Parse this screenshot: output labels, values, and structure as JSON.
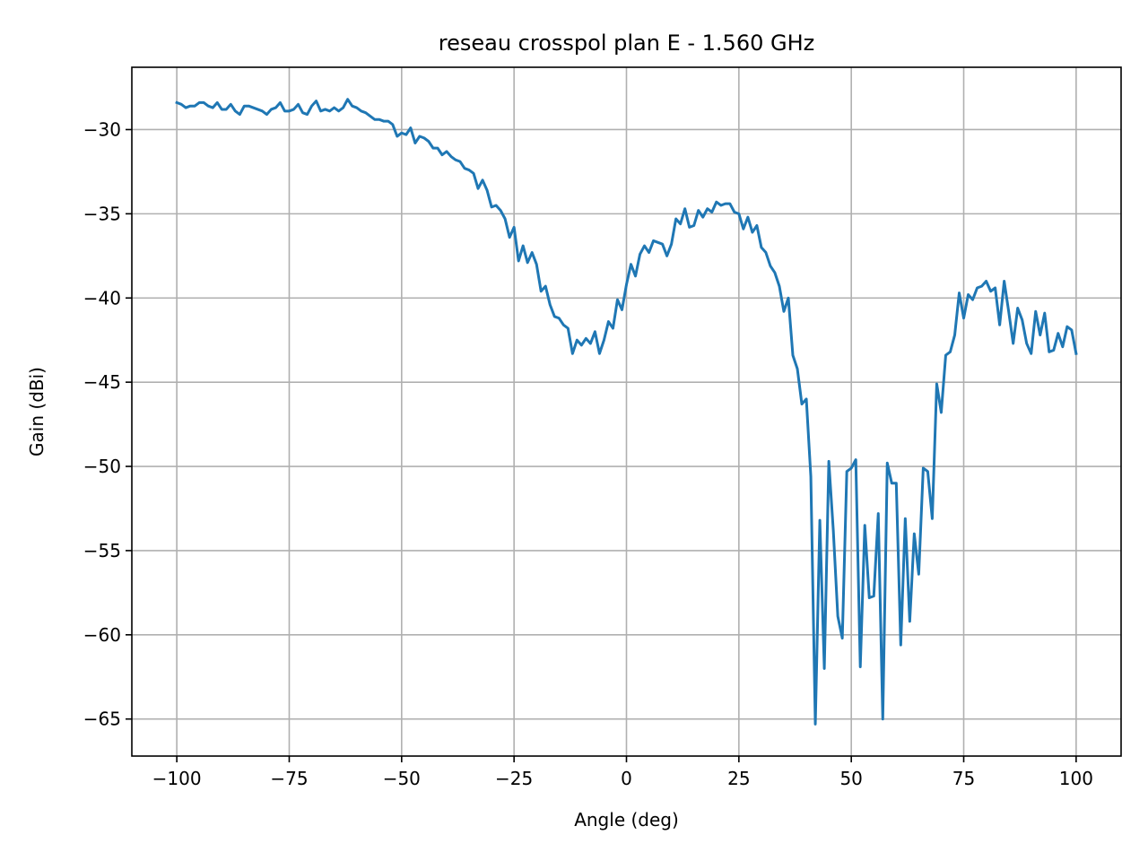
{
  "chart_data": {
    "type": "line",
    "title": "reseau crosspol plan E - 1.560 GHz",
    "xlabel": "Angle (deg)",
    "ylabel": "Gain (dBi)",
    "xlim": [
      -110,
      110
    ],
    "ylim": [
      -67.2,
      -26.3
    ],
    "xticks": [
      -100,
      -75,
      -50,
      -25,
      0,
      25,
      50,
      75,
      100
    ],
    "yticks": [
      -30,
      -35,
      -40,
      -45,
      -50,
      -55,
      -60,
      -65
    ],
    "xtick_labels": [
      "−100",
      "−75",
      "−50",
      "−25",
      "0",
      "25",
      "50",
      "75",
      "100"
    ],
    "ytick_labels": [
      "−30",
      "−35",
      "−40",
      "−45",
      "−50",
      "−55",
      "−60",
      "−65"
    ],
    "grid": true,
    "line_color": "#1f77b4",
    "series": [
      {
        "x": [
          -100,
          -99,
          -98,
          -97,
          -96,
          -95,
          -94,
          -93,
          -92,
          -91,
          -90,
          -89,
          -88,
          -87,
          -86,
          -85,
          -84,
          -83,
          -82,
          -81,
          -80,
          -79,
          -78,
          -77,
          -76,
          -75,
          -74,
          -73,
          -72,
          -71,
          -70,
          -69,
          -68,
          -67,
          -66,
          -65,
          -64,
          -63,
          -62,
          -61,
          -60,
          -59,
          -58,
          -57,
          -56,
          -55,
          -54,
          -53,
          -52,
          -51,
          -50,
          -49,
          -48,
          -47,
          -46,
          -45,
          -44,
          -43,
          -42,
          -41,
          -40,
          -39,
          -38,
          -37,
          -36,
          -35,
          -34,
          -33,
          -32,
          -31,
          -30,
          -29,
          -28,
          -27,
          -26,
          -25,
          -24,
          -23,
          -22,
          -21,
          -20,
          -19,
          -18,
          -17,
          -16,
          -15,
          -14,
          -13,
          -12,
          -11,
          -10,
          -9,
          -8,
          -7,
          -6,
          -5,
          -4,
          -3,
          -2,
          -1,
          0,
          1,
          2,
          3,
          4,
          5,
          6,
          7,
          8,
          9,
          10,
          11,
          12,
          13,
          14,
          15,
          16,
          17,
          18,
          19,
          20,
          21,
          22,
          23,
          24,
          25,
          26,
          27,
          28,
          29,
          30,
          31,
          32,
          33,
          34,
          35,
          36,
          37,
          38,
          39,
          40,
          41,
          42,
          43,
          44,
          45,
          46,
          47,
          48,
          49,
          50,
          51,
          52,
          53,
          54,
          55,
          56,
          57,
          58,
          59,
          60,
          61,
          62,
          63,
          64,
          65,
          66,
          67,
          68,
          69,
          70,
          71,
          72,
          73,
          74,
          75,
          76,
          77,
          78,
          79,
          80,
          81,
          82,
          83,
          84,
          85,
          86,
          87,
          88,
          89,
          90,
          91,
          92,
          93,
          94,
          95,
          96,
          97,
          98,
          99,
          100
        ],
        "y": [
          -28.4,
          -28.5,
          -28.7,
          -28.6,
          -28.6,
          -28.4,
          -28.4,
          -28.6,
          -28.7,
          -28.4,
          -28.8,
          -28.8,
          -28.5,
          -28.9,
          -29.1,
          -28.6,
          -28.6,
          -28.7,
          -28.8,
          -28.9,
          -29.1,
          -28.8,
          -28.7,
          -28.4,
          -28.9,
          -28.9,
          -28.8,
          -28.5,
          -29.0,
          -29.1,
          -28.6,
          -28.3,
          -28.9,
          -28.8,
          -28.9,
          -28.7,
          -28.9,
          -28.7,
          -28.2,
          -28.6,
          -28.7,
          -28.9,
          -29.0,
          -29.2,
          -29.4,
          -29.4,
          -29.5,
          -29.5,
          -29.7,
          -30.4,
          -30.2,
          -30.3,
          -29.9,
          -30.8,
          -30.4,
          -30.5,
          -30.7,
          -31.1,
          -31.1,
          -31.5,
          -31.3,
          -31.6,
          -31.8,
          -31.9,
          -32.3,
          -32.4,
          -32.6,
          -33.5,
          -33.0,
          -33.6,
          -34.6,
          -34.5,
          -34.8,
          -35.3,
          -36.4,
          -35.8,
          -37.8,
          -36.9,
          -37.9,
          -37.3,
          -38.0,
          -39.6,
          -39.3,
          -40.4,
          -41.1,
          -41.2,
          -41.6,
          -41.8,
          -43.3,
          -42.5,
          -42.8,
          -42.4,
          -42.7,
          -42.0,
          -43.3,
          -42.5,
          -41.4,
          -41.8,
          -40.1,
          -40.7,
          -39.2,
          -38.0,
          -38.7,
          -37.4,
          -36.9,
          -37.3,
          -36.6,
          -36.7,
          -36.8,
          -37.5,
          -36.8,
          -35.3,
          -35.6,
          -34.7,
          -35.8,
          -35.7,
          -34.8,
          -35.2,
          -34.7,
          -34.9,
          -34.3,
          -34.5,
          -34.4,
          -34.4,
          -34.9,
          -35.0,
          -35.9,
          -35.2,
          -36.1,
          -35.7,
          -37.0,
          -37.3,
          -38.1,
          -38.5,
          -39.3,
          -40.8,
          -40.0,
          -43.4,
          -44.2,
          -46.3,
          -46.0,
          -50.6,
          -65.3,
          -53.2,
          -62.0,
          -49.7,
          -53.8,
          -58.9,
          -60.2,
          -50.3,
          -50.1,
          -49.6,
          -61.9,
          -53.5,
          -57.8,
          -57.7,
          -52.8,
          -65.0,
          -49.8,
          -51.0,
          -51.0,
          -60.6,
          -53.1,
          -59.2,
          -54.0,
          -56.4,
          -50.1,
          -50.3,
          -53.1,
          -45.1,
          -46.8,
          -43.4,
          -43.2,
          -42.2,
          -39.7,
          -41.2,
          -39.8,
          -40.1,
          -39.4,
          -39.3,
          -39.0,
          -39.6,
          -39.4,
          -41.6,
          -39.0,
          -40.8,
          -42.7,
          -40.6,
          -41.3,
          -42.7,
          -43.3,
          -40.8,
          -42.2,
          -40.9,
          -43.2,
          -43.1,
          -42.1,
          -42.9,
          -41.7,
          -41.9,
          -43.3
        ]
      }
    ]
  }
}
